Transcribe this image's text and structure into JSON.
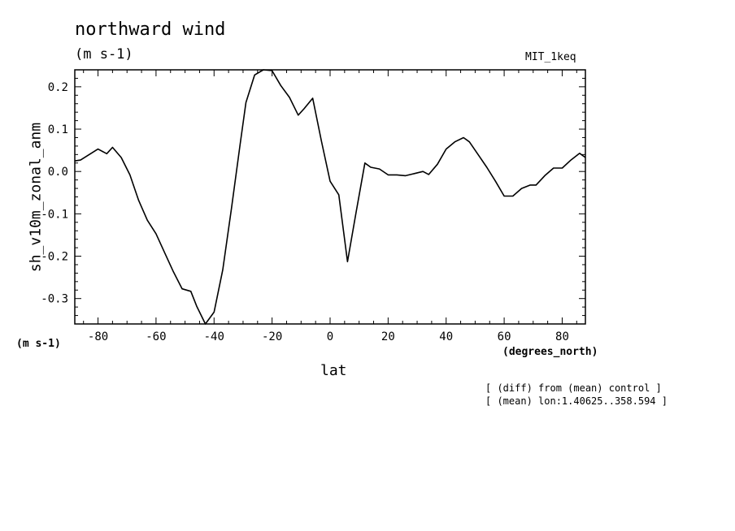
{
  "chart_data": {
    "type": "line",
    "title": "northward wind",
    "units": "(m s-1)",
    "model_label": "MIT_1keq",
    "ylabel": "sh_v10m_zonal_anm",
    "ylabel_units": "(m s-1)",
    "xlabel": "lat",
    "xlabel_units": "(degrees_north)",
    "notes": [
      "[ (diff) from (mean) control ]",
      "[ (mean) lon:1.40625..358.594 ]"
    ],
    "xlim": [
      -88,
      88
    ],
    "ylim": [
      -0.36,
      0.24
    ],
    "xticks": [
      -80,
      -60,
      -40,
      -20,
      0,
      20,
      40,
      60,
      80
    ],
    "xtick_labels": [
      "-80",
      "-60",
      "-40",
      "-20",
      "0",
      "20",
      "40",
      "60",
      "80"
    ],
    "yticks": [
      -0.3,
      -0.2,
      -0.1,
      0.0,
      0.1,
      0.2
    ],
    "ytick_labels": [
      "-0.3",
      "-0.2",
      "-0.1",
      "0.0",
      "0.1",
      "0.2"
    ],
    "grid": false,
    "line_color": "#000000",
    "x": [
      -88,
      -86,
      -83,
      -80,
      -77,
      -75,
      -72,
      -69,
      -66,
      -63,
      -60,
      -57,
      -54,
      -51,
      -48,
      -46,
      -43,
      -40,
      -37,
      -34,
      -31,
      -29,
      -26,
      -23,
      -20,
      -17,
      -14,
      -11,
      -9,
      -6,
      -3,
      0,
      3,
      6,
      9,
      12,
      14,
      17,
      20,
      23,
      26,
      29,
      32,
      34,
      37,
      40,
      43,
      46,
      48,
      51,
      54,
      57,
      60,
      63,
      66,
      69,
      71,
      74,
      77,
      80,
      83,
      86,
      88
    ],
    "y": [
      0.025,
      0.027,
      0.04,
      0.053,
      0.042,
      0.057,
      0.033,
      -0.008,
      -0.068,
      -0.115,
      -0.147,
      -0.192,
      -0.237,
      -0.277,
      -0.283,
      -0.318,
      -0.36,
      -0.332,
      -0.232,
      -0.087,
      0.065,
      0.163,
      0.228,
      0.24,
      0.238,
      0.203,
      0.175,
      0.133,
      0.148,
      0.173,
      0.072,
      -0.023,
      -0.055,
      -0.213,
      -0.095,
      0.02,
      0.01,
      0.006,
      -0.008,
      -0.008,
      -0.01,
      -0.005,
      0.0,
      -0.007,
      0.017,
      0.053,
      0.07,
      0.08,
      0.07,
      0.04,
      0.01,
      -0.023,
      -0.058,
      -0.058,
      -0.04,
      -0.032,
      -0.032,
      -0.01,
      0.008,
      0.008,
      0.027,
      0.043,
      0.033
    ]
  }
}
